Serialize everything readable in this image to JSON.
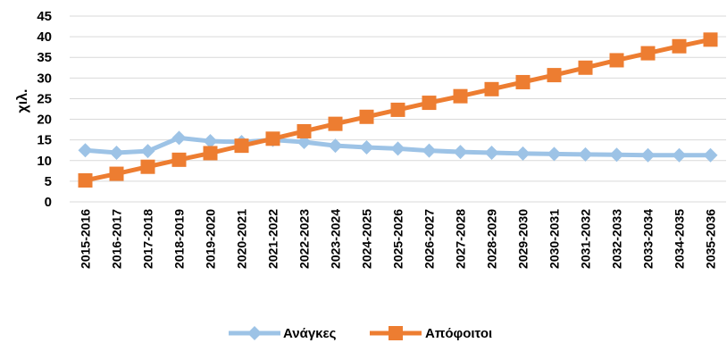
{
  "chart_data": {
    "type": "line",
    "title": "",
    "xlabel": "",
    "ylabel": "χιλ.",
    "ylim": [
      0,
      45
    ],
    "yticks": [
      0,
      5,
      10,
      15,
      20,
      25,
      30,
      35,
      40,
      45
    ],
    "grid": true,
    "legend_position": "bottom",
    "categories": [
      "2015-2016",
      "2016-2017",
      "2017-2018",
      "2018-2019",
      "2019-2020",
      "2020-2021",
      "2021-2022",
      "2022-2023",
      "2023-2024",
      "2024-2025",
      "2025-2026",
      "2026-2027",
      "2027-2028",
      "2028-2029",
      "2029-2030",
      "2030-2031",
      "2031-2032",
      "2032-2033",
      "2033-2034",
      "2034-2035",
      "2035-2036"
    ],
    "series": [
      {
        "name": "Ανάγκες",
        "color": "#9dc3e6",
        "marker": "diamond",
        "values": [
          12.5,
          11.9,
          12.3,
          15.5,
          14.7,
          14.5,
          15.0,
          14.5,
          13.6,
          13.2,
          12.9,
          12.4,
          12.1,
          11.9,
          11.7,
          11.6,
          11.5,
          11.4,
          11.3,
          11.3,
          11.3
        ]
      },
      {
        "name": "Απόφοιτοι",
        "color": "#ed7d31",
        "marker": "square",
        "values": [
          5.2,
          6.8,
          8.5,
          10.2,
          11.8,
          13.6,
          15.3,
          17.1,
          18.9,
          20.6,
          22.3,
          24.0,
          25.6,
          27.3,
          29.0,
          30.7,
          32.5,
          34.3,
          36.0,
          37.7,
          39.3
        ]
      }
    ]
  }
}
